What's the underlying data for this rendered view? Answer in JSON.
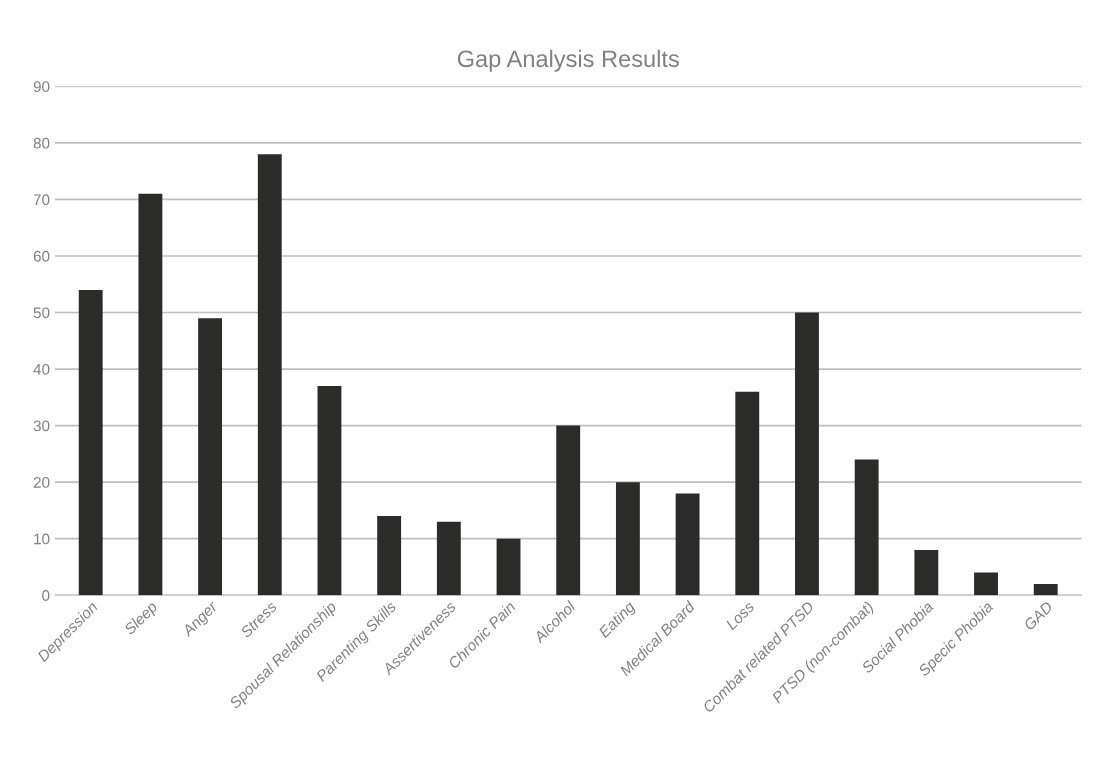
{
  "chart_data": {
    "type": "bar",
    "title": "Gap Analysis Results",
    "categories": [
      "Depression",
      "Sleep",
      "Anger",
      "Stress",
      "Spousal Relationship",
      "Parenting Skills",
      "Assertiveness",
      "Chronic Pain",
      "Alcohol",
      "Eating",
      "Medical Board",
      "Loss",
      "Combat related PTSD",
      "PTSD (non-combat)",
      "Social Phobia",
      "Specic Phobia",
      "GAD"
    ],
    "values": [
      54,
      71,
      49,
      78,
      37,
      14,
      13,
      10,
      30,
      20,
      18,
      36,
      50,
      24,
      8,
      4,
      2
    ],
    "color": "#2b2b29",
    "ylim": [
      0,
      90
    ],
    "yticks": [
      0,
      10,
      20,
      30,
      40,
      50,
      60,
      70,
      80,
      90
    ],
    "grid": "y"
  }
}
